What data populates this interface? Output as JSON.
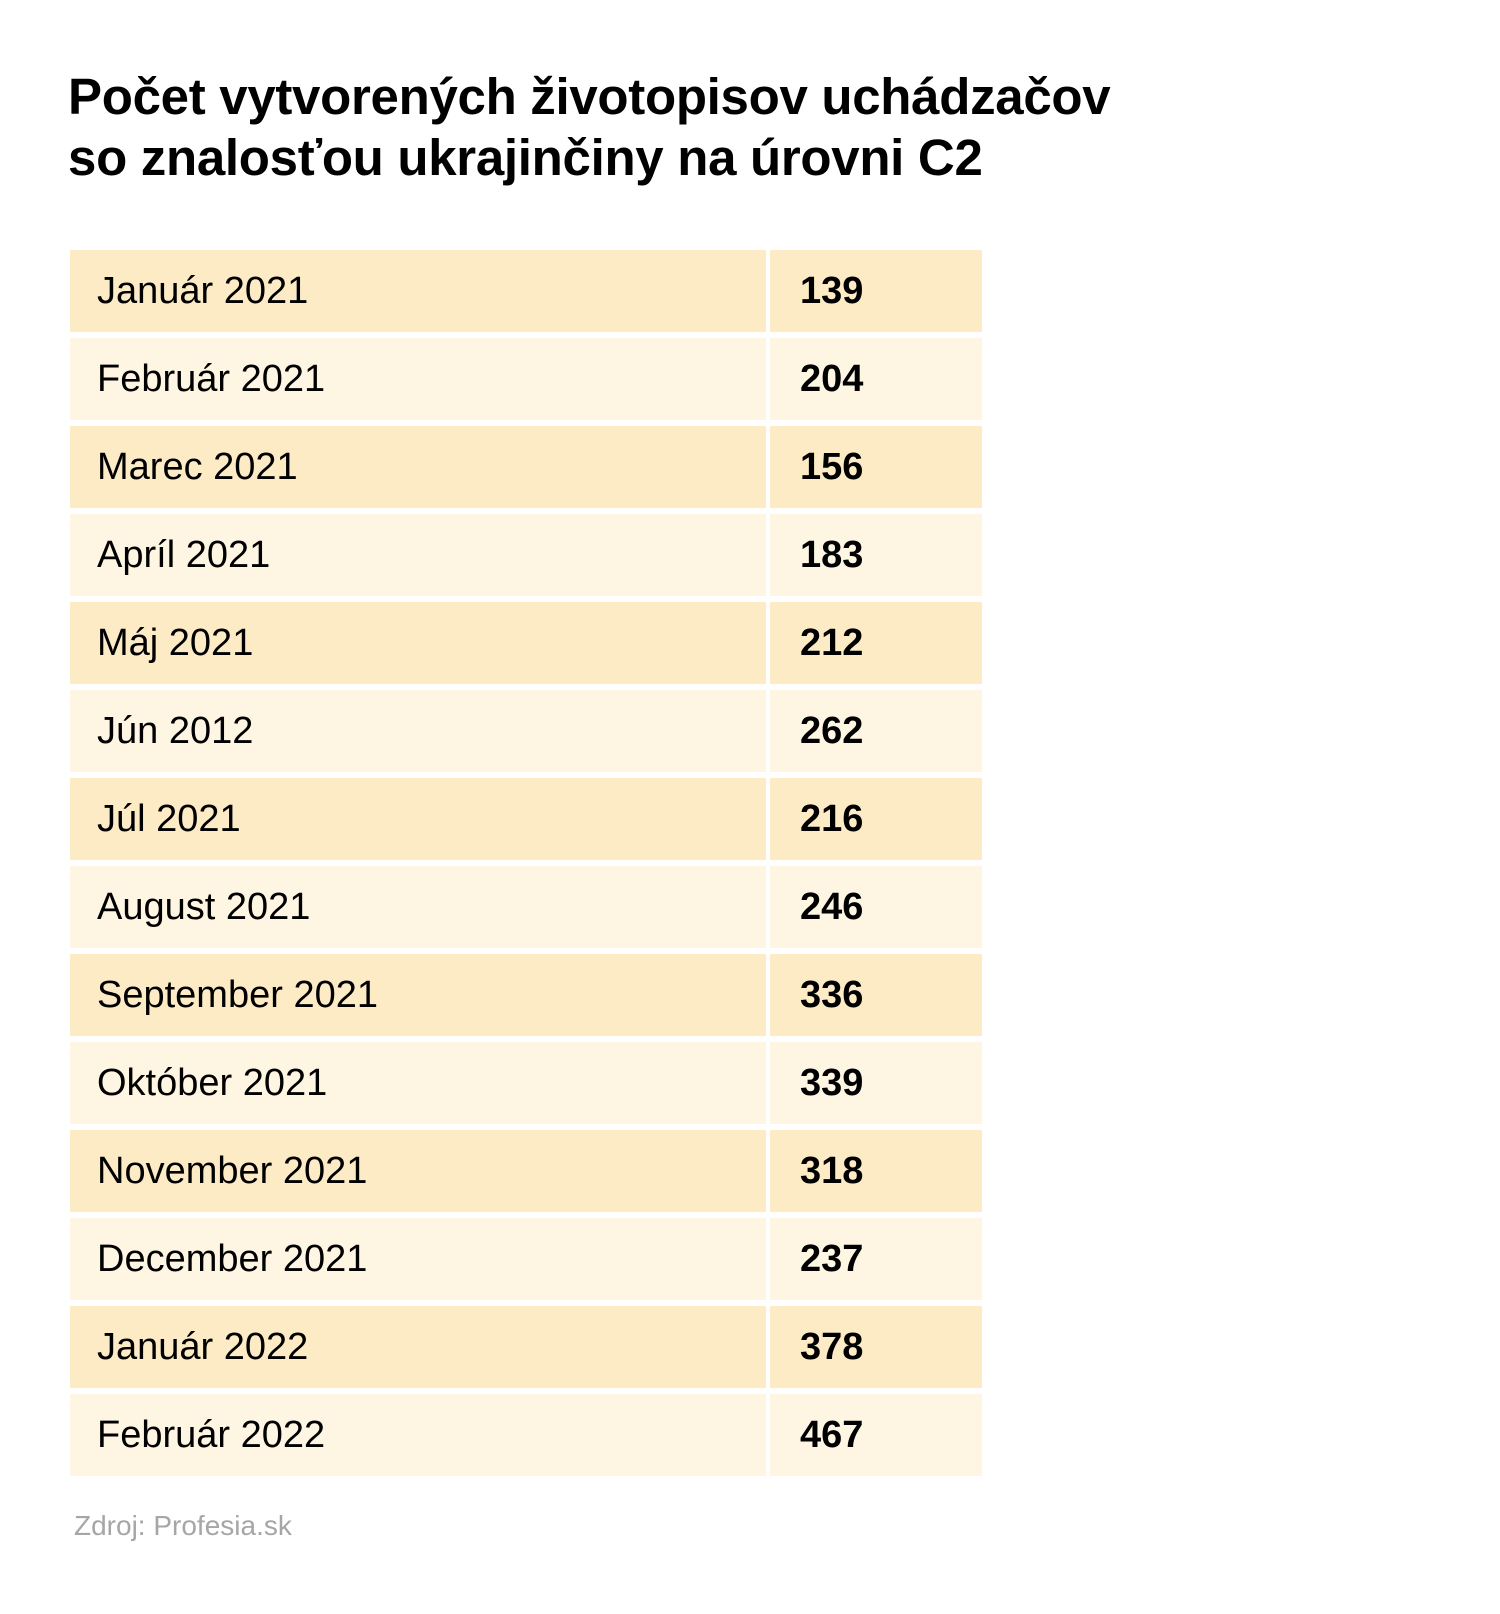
{
  "colors": {
    "row_dark": "#fcebc5",
    "row_light": "#fef6e3",
    "source_text": "#a6a6a6"
  },
  "chart_data": {
    "type": "table",
    "title_lines": [
      "Počet vytvorených životopisov uchádzačov",
      "so znalosťou ukrajinčiny na úrovni C2"
    ],
    "categories": [
      "Január 2021",
      "Február 2021",
      "Marec 2021",
      "Apríl 2021",
      "Máj 2021",
      "Jún 2012",
      "Júl 2021",
      "August 2021",
      "September 2021",
      "Október 2021",
      "November 2021",
      "December 2021",
      "Január 2022",
      "Február 2022"
    ],
    "values": [
      139,
      204,
      156,
      183,
      212,
      262,
      216,
      246,
      336,
      339,
      318,
      237,
      378,
      467
    ],
    "source": "Zdroj: Profesia.sk"
  }
}
